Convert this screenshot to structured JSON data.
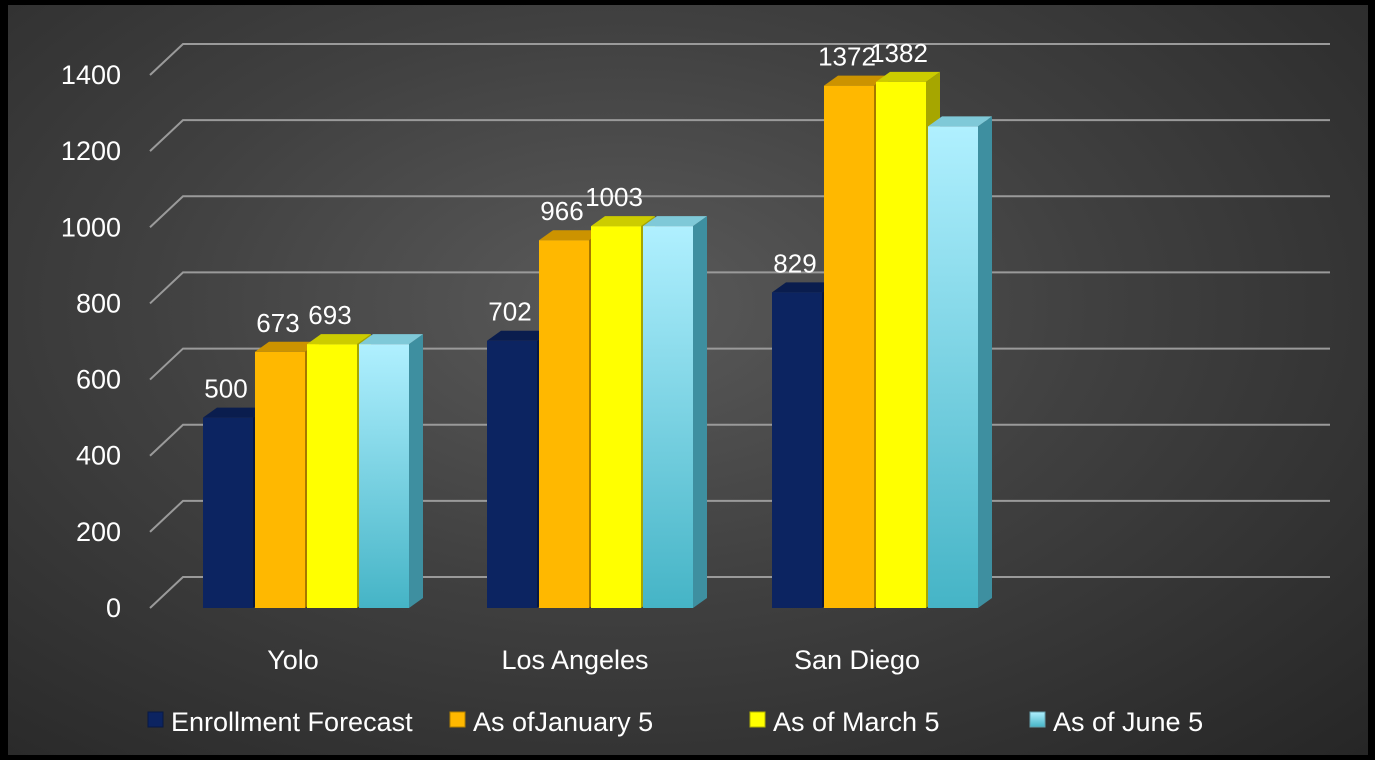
{
  "chart_data": {
    "type": "bar",
    "categories": [
      "Yolo",
      "Los Angeles",
      "San Diego"
    ],
    "series": [
      {
        "name": "Enrollment Forecast",
        "values": [
          500,
          702,
          829
        ],
        "labels": [
          "500",
          "702",
          "829"
        ],
        "color": "#0c2461"
      },
      {
        "name": "As ofJanuary 5",
        "values": [
          673,
          966,
          1372
        ],
        "labels": [
          "673",
          "966",
          "1372"
        ],
        "color": "#ffb800"
      },
      {
        "name": "As of March 5",
        "values": [
          693,
          1003,
          1382
        ],
        "labels": [
          "693",
          "1003",
          "1382"
        ],
        "color": "#ffff00"
      },
      {
        "name": "As of June 5",
        "values": [
          693,
          1003,
          1265
        ],
        "labels": [],
        "color": "#8fe3f5"
      }
    ],
    "ylim": [
      0,
      1400
    ],
    "yticks": [
      "0",
      "200",
      "400",
      "600",
      "800",
      "1000",
      "1200",
      "1400"
    ],
    "grid": true,
    "legend": "bottom"
  }
}
